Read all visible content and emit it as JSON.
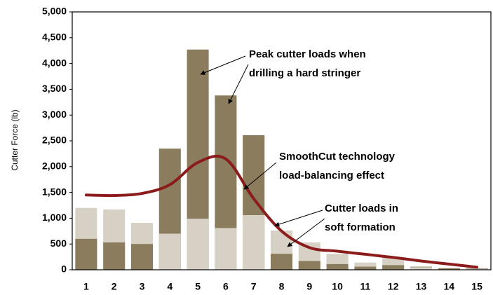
{
  "chart_data": {
    "type": "bar",
    "y_label": "Cutter Force (lb)",
    "categories": [
      "1",
      "2",
      "3",
      "4",
      "5",
      "6",
      "7",
      "8",
      "9",
      "10",
      "11",
      "12",
      "13",
      "14",
      "15"
    ],
    "series": [
      {
        "color": "#d7d1c5",
        "values": [
          1200,
          1170,
          910,
          700,
          990,
          810,
          1060,
          760,
          530,
          310,
          140,
          240,
          50,
          30,
          20
        ]
      },
      {
        "color": "#8a7c5c",
        "values": [
          600,
          530,
          500,
          2350,
          4270,
          3380,
          2610,
          310,
          170,
          110,
          60,
          90,
          60,
          30,
          30
        ]
      },
      {
        "type": "line",
        "color": "#8c1c1c",
        "values": [
          1450,
          1440,
          1480,
          1650,
          2080,
          2150,
          1380,
          750,
          430,
          360,
          300,
          240,
          170,
          110,
          50
        ]
      }
    ],
    "ylim": [
      0,
      5000
    ],
    "yticks": [
      0,
      500,
      {
        "value": 1000,
        "label": "1,000"
      },
      {
        "value": 1500,
        "label": "1,500"
      },
      {
        "value": 2000,
        "label": "2,000"
      },
      {
        "value": 2500,
        "label": "2,500"
      },
      {
        "value": 3000,
        "label": "3,000"
      },
      {
        "value": 3500,
        "label": "3,500"
      },
      {
        "value": 4000,
        "label": "4,000"
      },
      {
        "value": 4500,
        "label": "4,500"
      },
      {
        "value": 5000,
        "label": "5,000"
      }
    ],
    "annotations": [
      {
        "lines": [
          "Peak cutter loads when",
          "drilling a hard stringer"
        ]
      },
      {
        "lines": [
          "SmoothCut technology",
          "load-balancing effect"
        ]
      },
      {
        "lines": [
          "Cutter loads in",
          "soft formation"
        ]
      }
    ]
  }
}
